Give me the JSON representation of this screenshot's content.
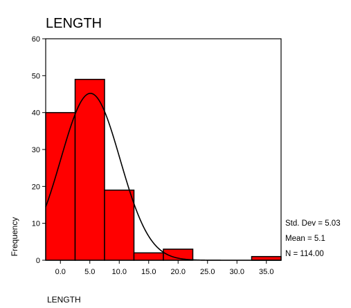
{
  "chart_data": {
    "type": "bar",
    "title": "LENGTH",
    "xlabel": "LENGTH",
    "ylabel": "Frequency",
    "categories": [
      "0.0",
      "5.0",
      "10.0",
      "15.0",
      "20.0",
      "25.0",
      "30.0",
      "35.0"
    ],
    "values": [
      40,
      49,
      19,
      2,
      3,
      0,
      0,
      1
    ],
    "bin_width": 5,
    "xlim": [
      -2.5,
      37.5
    ],
    "ylim": [
      0,
      60
    ],
    "yticks": [
      0,
      10,
      20,
      30,
      40,
      50,
      60
    ],
    "normal_curve": {
      "mean": 5.1,
      "std": 5.03,
      "n": 114
    },
    "stats": [
      "Std. Dev = 5.03",
      "Mean = 5.1",
      "N = 114.00"
    ],
    "colors": {
      "bar": "#ff0000",
      "bar_edge": "#000000",
      "curve": "#000000"
    },
    "grid": false,
    "legend": "none"
  }
}
